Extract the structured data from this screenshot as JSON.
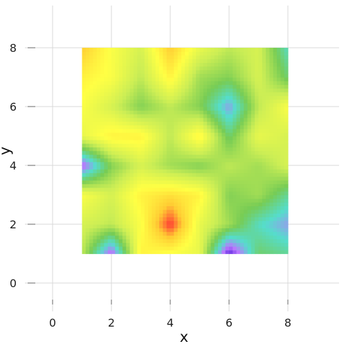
{
  "chart_data": {
    "type": "heatmap",
    "title": "",
    "xlabel": "x",
    "ylabel": "y",
    "xlim": [
      -0.8,
      9.5
    ],
    "ylim": [
      -0.5,
      9
    ],
    "grid": true,
    "legend": "none",
    "x_ticks": [
      0,
      2,
      4,
      6,
      8
    ],
    "x_tick_labels": [
      "0",
      "2",
      "4",
      "6",
      "8"
    ],
    "y_ticks": [
      0,
      2,
      4,
      6,
      8
    ],
    "y_tick_labels": [
      "0",
      "2",
      "4",
      "6",
      "8"
    ],
    "x": [
      1,
      2,
      3,
      4,
      5,
      6,
      7,
      8
    ],
    "y": [
      1,
      2,
      3,
      4,
      5,
      6,
      7,
      8
    ],
    "z": [
      [
        0.55,
        0.1,
        0.75,
        0.7,
        0.65,
        0.0,
        0.4,
        0.35
      ],
      [
        0.6,
        0.55,
        0.7,
        1.0,
        0.65,
        0.5,
        0.3,
        0.2
      ],
      [
        0.7,
        0.6,
        0.75,
        0.8,
        0.75,
        0.45,
        0.5,
        0.35
      ],
      [
        0.1,
        0.45,
        0.6,
        0.5,
        0.45,
        0.55,
        0.5,
        0.6
      ],
      [
        0.65,
        0.75,
        0.75,
        0.55,
        0.75,
        0.4,
        0.65,
        0.6
      ],
      [
        0.7,
        0.6,
        0.45,
        0.55,
        0.45,
        0.2,
        0.55,
        0.7
      ],
      [
        0.75,
        0.7,
        0.55,
        0.75,
        0.5,
        0.45,
        0.6,
        0.4
      ],
      [
        0.85,
        0.7,
        0.6,
        0.85,
        0.65,
        0.55,
        0.6,
        0.3
      ]
    ],
    "colorscale": [
      "#5522dd",
      "#bb77ff",
      "#55ddcc",
      "#77cc55",
      "#ccee55",
      "#ffff44",
      "#ffcc33",
      "#ff3333"
    ]
  }
}
